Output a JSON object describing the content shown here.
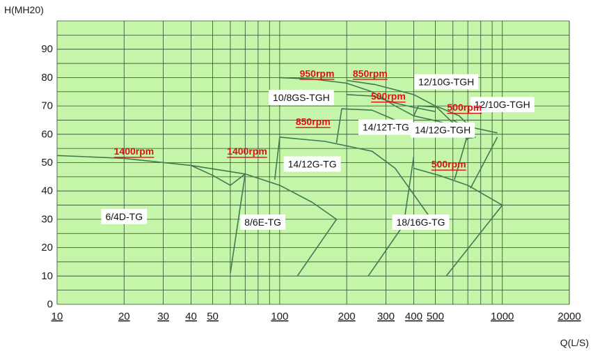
{
  "chart_data": {
    "type": "line",
    "xlabel": "Q(L/S)",
    "ylabel": "H(MH20)",
    "x_scale": "log",
    "xlim": [
      10,
      2000
    ],
    "ylim": [
      0,
      100
    ],
    "grid": true,
    "x_ticks": [
      10,
      20,
      30,
      40,
      50,
      100,
      200,
      300,
      400,
      500,
      1000,
      2000
    ],
    "y_ticks": [
      0,
      10,
      20,
      30,
      40,
      50,
      60,
      70,
      80,
      90
    ],
    "colors": {
      "plot_bg": "#c5f5a8",
      "grid": "#2f4a2f",
      "curve": "#3f7a55",
      "speed_label": "#e01010"
    },
    "curves": [
      {
        "points": [
          [
            10,
            52.5
          ],
          [
            20,
            51.5
          ],
          [
            40,
            49
          ],
          [
            70,
            46
          ]
        ]
      },
      {
        "points": [
          [
            70,
            46
          ],
          [
            100,
            42
          ],
          [
            140,
            36
          ],
          [
            180,
            30
          ]
        ]
      },
      {
        "points": [
          [
            180,
            30
          ],
          [
            120,
            10
          ]
        ]
      },
      {
        "points": [
          [
            70,
            46
          ],
          [
            60,
            11
          ]
        ]
      },
      {
        "points": [
          [
            70,
            46
          ],
          [
            60,
            42
          ],
          [
            50,
            45.5
          ],
          [
            40,
            49
          ]
        ]
      },
      {
        "points": [
          [
            95,
            44
          ],
          [
            100,
            59
          ],
          [
            160,
            57.5
          ],
          [
            260,
            54
          ],
          [
            330,
            48
          ],
          [
            480,
            30
          ]
        ]
      },
      {
        "points": [
          [
            400,
            52
          ],
          [
            360,
            28
          ],
          [
            250,
            10
          ]
        ]
      },
      {
        "points": [
          [
            400,
            48
          ],
          [
            520,
            45.5
          ],
          [
            700,
            42
          ],
          [
            1000,
            35
          ]
        ]
      },
      {
        "points": [
          [
            1000,
            35
          ],
          [
            560,
            10
          ]
        ]
      },
      {
        "points": [
          [
            180,
            57
          ],
          [
            190,
            69
          ],
          [
            260,
            68.5
          ],
          [
            330,
            65
          ],
          [
            400,
            61
          ]
        ]
      },
      {
        "points": [
          [
            400,
            66.5
          ],
          [
            520,
            64.5
          ],
          [
            620,
            62.5
          ],
          [
            700,
            58
          ]
        ]
      },
      {
        "points": [
          [
            610,
            44
          ],
          [
            690,
            58.5
          ],
          [
            760,
            59
          ]
        ]
      },
      {
        "points": [
          [
            600,
            65
          ],
          [
            650,
            63.5
          ],
          [
            720,
            62.5
          ],
          [
            950,
            60.5
          ]
        ]
      },
      {
        "points": [
          [
            950,
            59
          ],
          [
            720,
            41
          ]
        ]
      },
      {
        "points": [
          [
            100,
            80
          ],
          [
            140,
            79.5
          ],
          [
            200,
            78
          ],
          [
            260,
            75
          ],
          [
            330,
            70
          ],
          [
            400,
            66.5
          ]
        ]
      },
      {
        "points": [
          [
            200,
            79
          ],
          [
            270,
            77.5
          ],
          [
            400,
            74
          ],
          [
            500,
            70
          ],
          [
            600,
            64
          ]
        ]
      },
      {
        "points": [
          [
            200,
            74
          ],
          [
            260,
            73.5
          ],
          [
            330,
            71
          ],
          [
            400,
            69.5
          ],
          [
            500,
            68
          ]
        ]
      },
      {
        "points": [
          [
            400,
            66.5
          ],
          [
            420,
            70
          ],
          [
            520,
            69.5
          ],
          [
            640,
            66.5
          ],
          [
            720,
            62.5
          ]
        ]
      }
    ],
    "models": [
      {
        "text": "6/4D-TG",
        "x": 20,
        "y": 31
      },
      {
        "text": "8/6E-TG",
        "x": 84,
        "y": 29
      },
      {
        "text": "14/12G-TG",
        "x": 140,
        "y": 49.5
      },
      {
        "text": "18/16G-TG",
        "x": 430,
        "y": 29
      },
      {
        "text": "10/8GS-TGH",
        "x": 125,
        "y": 73
      },
      {
        "text": "14/12T-TG",
        "x": 300,
        "y": 62.5
      },
      {
        "text": "14/12G-TGH",
        "x": 540,
        "y": 61.5
      },
      {
        "text": "12/10G-TGH",
        "x": 560,
        "y": 78.5
      },
      {
        "text": "12/10G-TGH",
        "x": 1000,
        "y": 70.5
      }
    ],
    "speed_labels": [
      {
        "text": "1400rpm",
        "x": 18,
        "y": 54
      },
      {
        "text": "1400rpm",
        "x": 58,
        "y": 54
      },
      {
        "text": "950rpm",
        "x": 123,
        "y": 81.5
      },
      {
        "text": "850rpm",
        "x": 213,
        "y": 81.5
      },
      {
        "text": "850rpm",
        "x": 118,
        "y": 64.5
      },
      {
        "text": "500rpm",
        "x": 257,
        "y": 73.5
      },
      {
        "text": "500rpm",
        "x": 565,
        "y": 69.5
      },
      {
        "text": "500rpm",
        "x": 480,
        "y": 49.5
      }
    ]
  }
}
